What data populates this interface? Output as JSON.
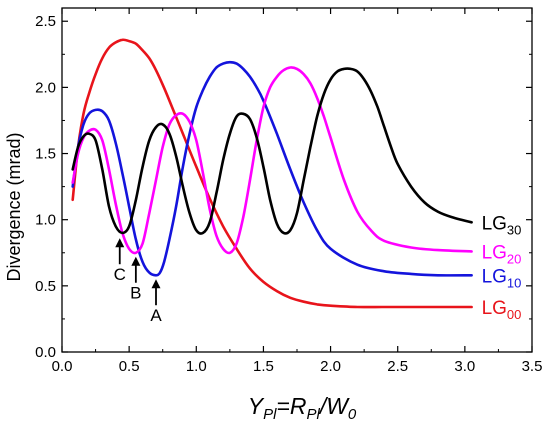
{
  "chart_data": {
    "type": "line",
    "title": "",
    "ylabel": "Divergence (mrad)",
    "xlabel_parts": {
      "y": "Y",
      "y_sub": "Pl",
      "eq": "=R",
      "r_sub": "Pl",
      "slash": "/W",
      "w_sub": "0"
    },
    "xlim": [
      0.0,
      3.5
    ],
    "ylim": [
      0.0,
      2.6
    ],
    "xticks": [
      0.0,
      0.5,
      1.0,
      1.5,
      2.0,
      2.5,
      3.0,
      3.5
    ],
    "yticks": [
      0.0,
      0.5,
      1.0,
      1.5,
      2.0,
      2.5
    ],
    "xtick_labels": [
      "0.0",
      "0.5",
      "1.0",
      "1.5",
      "2.0",
      "2.5",
      "3.0",
      "3.5"
    ],
    "ytick_labels": [
      "0.0",
      "0.5",
      "1.0",
      "1.5",
      "2.0",
      "2.5"
    ],
    "grid": false,
    "series": [
      {
        "name": "LG00",
        "label_main": "LG",
        "label_sub": "00",
        "color": "#e8141b",
        "x": [
          0.08,
          0.12,
          0.16,
          0.2,
          0.25,
          0.3,
          0.35,
          0.4,
          0.45,
          0.5,
          0.55,
          0.6,
          0.65,
          0.7,
          0.75,
          0.8,
          0.9,
          1.0,
          1.1,
          1.2,
          1.3,
          1.4,
          1.5,
          1.6,
          1.7,
          1.8,
          1.9,
          2.0,
          2.2,
          2.4,
          2.6,
          2.8,
          3.05
        ],
        "y": [
          1.15,
          1.55,
          1.8,
          1.95,
          2.1,
          2.22,
          2.3,
          2.34,
          2.36,
          2.35,
          2.33,
          2.28,
          2.22,
          2.13,
          2.02,
          1.9,
          1.65,
          1.4,
          1.16,
          0.95,
          0.78,
          0.63,
          0.53,
          0.46,
          0.41,
          0.38,
          0.36,
          0.35,
          0.34,
          0.34,
          0.34,
          0.34,
          0.34
        ]
      },
      {
        "name": "LG10",
        "label_main": "LG",
        "label_sub": "10",
        "color": "#1414dc",
        "x": [
          0.08,
          0.12,
          0.16,
          0.2,
          0.25,
          0.3,
          0.35,
          0.4,
          0.45,
          0.5,
          0.55,
          0.6,
          0.65,
          0.7,
          0.73,
          0.76,
          0.8,
          0.85,
          0.9,
          0.95,
          1.0,
          1.05,
          1.1,
          1.15,
          1.2,
          1.25,
          1.3,
          1.35,
          1.4,
          1.45,
          1.5,
          1.6,
          1.7,
          1.8,
          1.9,
          2.0,
          2.2,
          2.4,
          2.6,
          2.8,
          3.05
        ],
        "y": [
          1.25,
          1.55,
          1.72,
          1.8,
          1.83,
          1.82,
          1.75,
          1.58,
          1.35,
          1.1,
          0.85,
          0.68,
          0.6,
          0.58,
          0.6,
          0.68,
          0.85,
          1.1,
          1.4,
          1.65,
          1.85,
          1.98,
          2.08,
          2.15,
          2.18,
          2.19,
          2.18,
          2.14,
          2.08,
          2.0,
          1.9,
          1.65,
          1.38,
          1.13,
          0.92,
          0.78,
          0.66,
          0.61,
          0.59,
          0.58,
          0.58
        ]
      },
      {
        "name": "LG20",
        "label_main": "LG",
        "label_sub": "20",
        "color": "#ff00ff",
        "x": [
          0.08,
          0.12,
          0.16,
          0.2,
          0.25,
          0.3,
          0.35,
          0.4,
          0.45,
          0.5,
          0.55,
          0.6,
          0.65,
          0.7,
          0.75,
          0.8,
          0.85,
          0.9,
          0.95,
          1.0,
          1.05,
          1.1,
          1.15,
          1.2,
          1.25,
          1.3,
          1.35,
          1.4,
          1.45,
          1.5,
          1.55,
          1.6,
          1.65,
          1.7,
          1.75,
          1.8,
          1.85,
          1.9,
          1.95,
          2.0,
          2.1,
          2.2,
          2.3,
          2.4,
          2.6,
          2.8,
          3.05
        ],
        "y": [
          1.28,
          1.5,
          1.62,
          1.67,
          1.68,
          1.6,
          1.38,
          1.12,
          0.9,
          0.78,
          0.75,
          0.82,
          1.05,
          1.3,
          1.55,
          1.72,
          1.79,
          1.8,
          1.74,
          1.6,
          1.35,
          1.08,
          0.88,
          0.78,
          0.75,
          0.82,
          1.02,
          1.3,
          1.6,
          1.85,
          2.0,
          2.08,
          2.13,
          2.15,
          2.14,
          2.1,
          2.03,
          1.92,
          1.78,
          1.62,
          1.3,
          1.06,
          0.92,
          0.84,
          0.79,
          0.77,
          0.76
        ]
      },
      {
        "name": "LG30",
        "label_main": "LG",
        "label_sub": "30",
        "color": "#000000",
        "x": [
          0.08,
          0.12,
          0.16,
          0.2,
          0.25,
          0.3,
          0.35,
          0.4,
          0.45,
          0.5,
          0.55,
          0.6,
          0.65,
          0.7,
          0.75,
          0.8,
          0.85,
          0.9,
          0.95,
          1.0,
          1.05,
          1.1,
          1.15,
          1.2,
          1.25,
          1.3,
          1.35,
          1.4,
          1.45,
          1.5,
          1.55,
          1.6,
          1.65,
          1.7,
          1.75,
          1.8,
          1.85,
          1.9,
          1.95,
          2.0,
          2.05,
          2.1,
          2.15,
          2.2,
          2.25,
          2.3,
          2.35,
          2.4,
          2.45,
          2.5,
          2.6,
          2.7,
          2.8,
          2.9,
          3.05
        ],
        "y": [
          1.38,
          1.55,
          1.63,
          1.65,
          1.6,
          1.38,
          1.1,
          0.95,
          0.9,
          0.95,
          1.15,
          1.4,
          1.6,
          1.7,
          1.72,
          1.65,
          1.48,
          1.25,
          1.05,
          0.92,
          0.9,
          0.98,
          1.2,
          1.45,
          1.65,
          1.78,
          1.8,
          1.76,
          1.62,
          1.4,
          1.15,
          0.97,
          0.9,
          0.92,
          1.05,
          1.3,
          1.55,
          1.78,
          1.95,
          2.06,
          2.12,
          2.14,
          2.14,
          2.12,
          2.06,
          1.97,
          1.85,
          1.7,
          1.55,
          1.42,
          1.25,
          1.13,
          1.06,
          1.02,
          0.98
        ]
      }
    ],
    "annotations": [
      {
        "text": "A",
        "x": 0.7,
        "y_tip": 0.55
      },
      {
        "text": "B",
        "x": 0.55,
        "y_tip": 0.72
      },
      {
        "text": "C",
        "x": 0.43,
        "y_tip": 0.86
      }
    ]
  }
}
